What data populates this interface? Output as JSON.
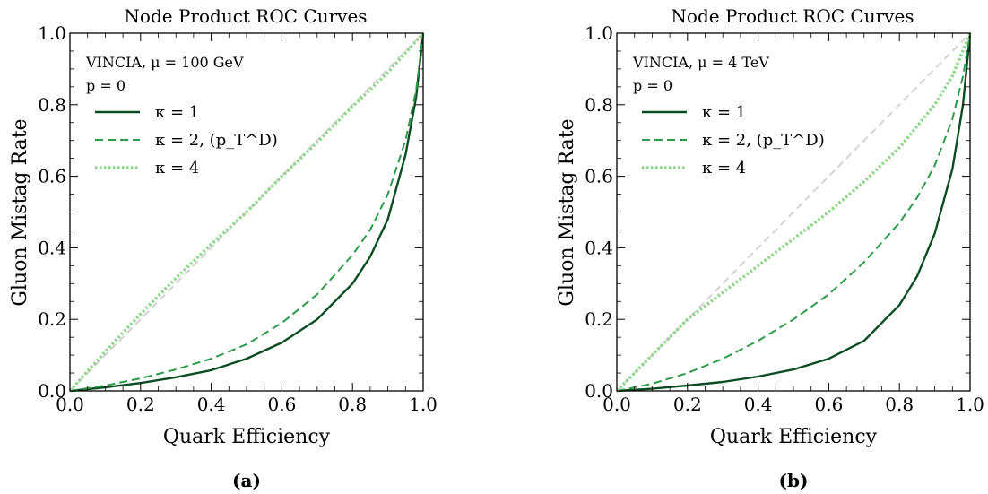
{
  "captions": [
    "(a)",
    "(b)"
  ],
  "chart_data": [
    {
      "type": "line",
      "title": "Node Product ROC Curves",
      "xlabel": "Quark Efficiency",
      "ylabel": "Gluon Mistag Rate",
      "xlim": [
        0,
        1
      ],
      "ylim": [
        0,
        1
      ],
      "xticks": [
        "0.0",
        "0.2",
        "0.4",
        "0.6",
        "0.8",
        "1.0"
      ],
      "yticks": [
        "0.0",
        "0.2",
        "0.4",
        "0.6",
        "0.8",
        "1.0"
      ],
      "annotation_line1": "VINCIA, μ = 100 GeV",
      "annotation_line2": "p = 0",
      "legend_position": "upper-left",
      "grid": false,
      "series": [
        {
          "name": "κ = 1",
          "style": "solid",
          "color": "#0b4d23",
          "x": [
            0,
            0.1,
            0.2,
            0.3,
            0.4,
            0.5,
            0.6,
            0.7,
            0.8,
            0.85,
            0.9,
            0.95,
            0.98,
            1.0
          ],
          "y": [
            0,
            0.01,
            0.022,
            0.038,
            0.058,
            0.09,
            0.135,
            0.2,
            0.3,
            0.375,
            0.48,
            0.66,
            0.82,
            1.0
          ]
        },
        {
          "name": "κ = 2, (p_T^D)",
          "style": "dashed",
          "color": "#2e9b4a",
          "x": [
            0,
            0.1,
            0.2,
            0.3,
            0.4,
            0.5,
            0.6,
            0.7,
            0.8,
            0.85,
            0.9,
            0.95,
            0.98,
            1.0
          ],
          "y": [
            0,
            0.015,
            0.035,
            0.06,
            0.09,
            0.13,
            0.19,
            0.27,
            0.38,
            0.45,
            0.55,
            0.7,
            0.84,
            1.0
          ]
        },
        {
          "name": "κ = 4",
          "style": "dotted",
          "color": "#8ed68a",
          "x": [
            0,
            0.1,
            0.2,
            0.3,
            0.4,
            0.5,
            0.6,
            0.7,
            0.8,
            0.9,
            1.0
          ],
          "y": [
            0,
            0.11,
            0.215,
            0.315,
            0.41,
            0.5,
            0.6,
            0.695,
            0.795,
            0.89,
            1.0
          ]
        },
        {
          "name": "",
          "style": "dashed",
          "color": "#cfcfcf",
          "x": [
            0,
            1
          ],
          "y": [
            0,
            1
          ]
        }
      ]
    },
    {
      "type": "line",
      "title": "Node Product ROC Curves",
      "xlabel": "Quark Efficiency",
      "ylabel": "Gluon Mistag Rate",
      "xlim": [
        0,
        1
      ],
      "ylim": [
        0,
        1
      ],
      "xticks": [
        "0.0",
        "0.2",
        "0.4",
        "0.6",
        "0.8",
        "1.0"
      ],
      "yticks": [
        "0.0",
        "0.2",
        "0.4",
        "0.6",
        "0.8",
        "1.0"
      ],
      "annotation_line1": "VINCIA, μ = 4 TeV",
      "annotation_line2": "p = 0",
      "legend_position": "upper-left",
      "grid": false,
      "series": [
        {
          "name": "κ = 1",
          "style": "solid",
          "color": "#0b4d23",
          "x": [
            0,
            0.1,
            0.2,
            0.3,
            0.4,
            0.5,
            0.6,
            0.7,
            0.8,
            0.85,
            0.9,
            0.95,
            0.98,
            1.0
          ],
          "y": [
            0,
            0.006,
            0.015,
            0.025,
            0.04,
            0.06,
            0.09,
            0.14,
            0.24,
            0.32,
            0.44,
            0.62,
            0.8,
            1.0
          ]
        },
        {
          "name": "κ = 2, (p_T^D)",
          "style": "dashed",
          "color": "#2e9b4a",
          "x": [
            0,
            0.1,
            0.2,
            0.3,
            0.4,
            0.5,
            0.6,
            0.7,
            0.8,
            0.85,
            0.9,
            0.95,
            0.98,
            1.0
          ],
          "y": [
            0,
            0.02,
            0.05,
            0.09,
            0.14,
            0.2,
            0.27,
            0.36,
            0.47,
            0.54,
            0.63,
            0.76,
            0.88,
            1.0
          ]
        },
        {
          "name": "κ = 4",
          "style": "dotted",
          "color": "#8ed68a",
          "x": [
            0,
            0.1,
            0.2,
            0.3,
            0.4,
            0.5,
            0.6,
            0.7,
            0.8,
            0.9,
            0.95,
            1.0
          ],
          "y": [
            0,
            0.1,
            0.2,
            0.275,
            0.35,
            0.425,
            0.5,
            0.585,
            0.68,
            0.8,
            0.88,
            1.0
          ]
        },
        {
          "name": "",
          "style": "dashed",
          "color": "#cfcfcf",
          "x": [
            0,
            1
          ],
          "y": [
            0,
            1
          ]
        }
      ]
    }
  ]
}
